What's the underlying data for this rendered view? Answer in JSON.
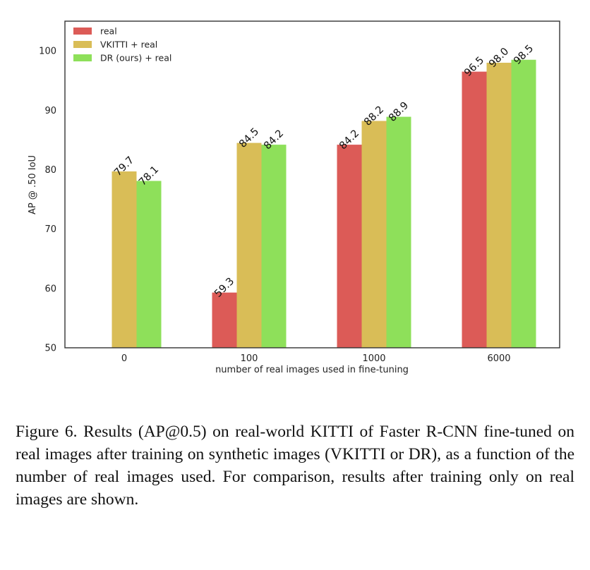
{
  "chart_data": {
    "type": "bar",
    "xlabel": "number of real images used in fine-tuning",
    "ylabel": "AP @ .50 IoU",
    "ylim": [
      50,
      105
    ],
    "yticks": [
      50,
      60,
      70,
      80,
      90,
      100
    ],
    "categories": [
      "0",
      "100",
      "1000",
      "6000"
    ],
    "legend_position": "top-left",
    "grid": false,
    "series": [
      {
        "name": "real",
        "color": "#dc5b57",
        "values": [
          null,
          59.3,
          84.2,
          96.5
        ],
        "labels": [
          "",
          "59.3",
          "84.2",
          "96.5"
        ]
      },
      {
        "name": "VKITTI + real",
        "color": "#d9bd57",
        "values": [
          79.7,
          84.5,
          88.2,
          98.0
        ],
        "labels": [
          "79.7",
          "84.5",
          "88.2",
          "98.0"
        ]
      },
      {
        "name": "DR (ours) + real",
        "color": "#8ee05a",
        "values": [
          78.1,
          84.2,
          88.9,
          98.5
        ],
        "labels": [
          "78.1",
          "84.2",
          "88.9",
          "98.5"
        ]
      }
    ]
  },
  "caption": "Figure 6. Results (AP@0.5) on real-world KITTI of Faster R-CNN fine-tuned on real images after training on synthetic images (VKITTI or DR), as a function of the number of real images used. For comparison, results after training only on real images are shown."
}
